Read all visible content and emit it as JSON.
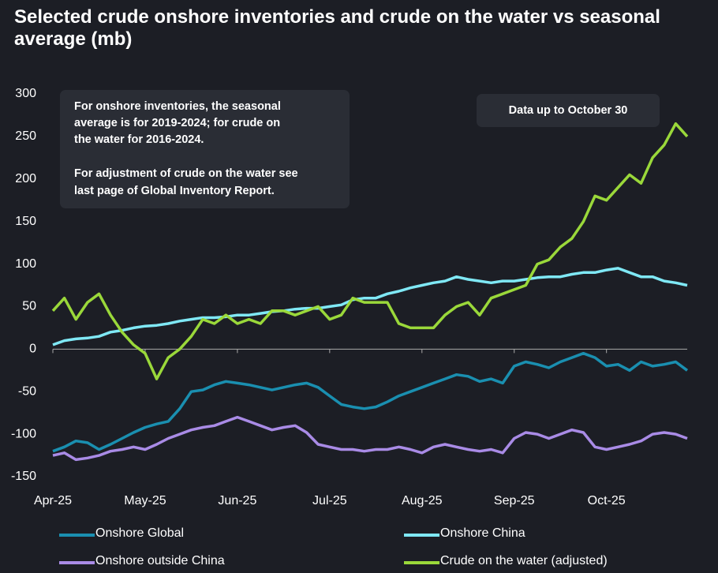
{
  "chart_data": {
    "type": "line",
    "title": "Selected crude onshore inventories and crude on the water vs seasonal average (mb)",
    "note_lines": [
      "For onshore inventories, the seasonal",
      "average is for 2019-2024; for crude on",
      "the water for 2016-2024.",
      "For adjustment of crude on the water see",
      "last page of Global Inventory Report."
    ],
    "data_note": "Data up to October 30",
    "categories": [
      "Apr-25",
      null,
      null,
      null,
      null,
      null,
      null,
      null,
      "May-25",
      null,
      null,
      null,
      null,
      null,
      null,
      null,
      "Jun-25",
      null,
      null,
      null,
      null,
      null,
      null,
      null,
      "Jul-25",
      null,
      null,
      null,
      null,
      null,
      null,
      null,
      "Aug-25",
      null,
      null,
      null,
      null,
      null,
      null,
      null,
      "Sep-25",
      null,
      null,
      null,
      null,
      null,
      null,
      null,
      "Oct-25",
      null,
      null,
      null,
      null,
      null,
      null,
      null
    ],
    "ylim": [
      -150,
      300
    ],
    "yticks": [
      -150,
      -100,
      -50,
      0,
      50,
      100,
      150,
      200,
      250,
      300
    ],
    "series": [
      {
        "name": "Onshore Global",
        "color": "#1a8fb0",
        "values": [
          -120,
          -115,
          -108,
          -110,
          -118,
          -112,
          -105,
          -98,
          -92,
          -88,
          -85,
          -70,
          -50,
          -48,
          -42,
          -38,
          -40,
          -42,
          -45,
          -48,
          -45,
          -42,
          -40,
          -45,
          -55,
          -65,
          -68,
          -70,
          -68,
          -62,
          -55,
          -50,
          -45,
          -40,
          -35,
          -30,
          -32,
          -38,
          -35,
          -40,
          -20,
          -15,
          -18,
          -22,
          -15,
          -10,
          -5,
          -10,
          -20,
          -18,
          -25,
          -15,
          -20,
          -18,
          -15,
          -25
        ]
      },
      {
        "name": "Onshore China",
        "color": "#7fe8f5",
        "values": [
          5,
          10,
          12,
          13,
          15,
          20,
          22,
          25,
          27,
          28,
          30,
          33,
          35,
          37,
          37,
          38,
          40,
          40,
          42,
          44,
          45,
          47,
          48,
          48,
          50,
          52,
          58,
          60,
          60,
          65,
          68,
          72,
          75,
          78,
          80,
          85,
          82,
          80,
          78,
          80,
          80,
          82,
          84,
          85,
          85,
          88,
          90,
          90,
          93,
          95,
          90,
          85,
          85,
          80,
          78,
          75
        ]
      },
      {
        "name": "Onshore outside China",
        "color": "#a98be6",
        "values": [
          -125,
          -122,
          -130,
          -128,
          -125,
          -120,
          -118,
          -115,
          -118,
          -112,
          -105,
          -100,
          -95,
          -92,
          -90,
          -85,
          -80,
          -85,
          -90,
          -95,
          -92,
          -90,
          -98,
          -112,
          -115,
          -118,
          -118,
          -120,
          -118,
          -118,
          -115,
          -118,
          -122,
          -115,
          -112,
          -115,
          -118,
          -120,
          -118,
          -122,
          -105,
          -98,
          -100,
          -105,
          -100,
          -95,
          -98,
          -115,
          -118,
          -115,
          -112,
          -108,
          -100,
          -98,
          -100,
          -105
        ]
      },
      {
        "name": "Crude on the water (adjusted)",
        "color": "#9ad83a",
        "values": [
          45,
          60,
          35,
          55,
          65,
          40,
          20,
          5,
          -5,
          -35,
          -10,
          0,
          15,
          35,
          30,
          40,
          30,
          35,
          30,
          45,
          45,
          40,
          45,
          50,
          35,
          40,
          60,
          55,
          55,
          55,
          30,
          25,
          25,
          25,
          40,
          50,
          55,
          40,
          60,
          65,
          70,
          75,
          100,
          105,
          120,
          130,
          150,
          180,
          175,
          190,
          205,
          195,
          225,
          240,
          265,
          250
        ]
      }
    ]
  }
}
